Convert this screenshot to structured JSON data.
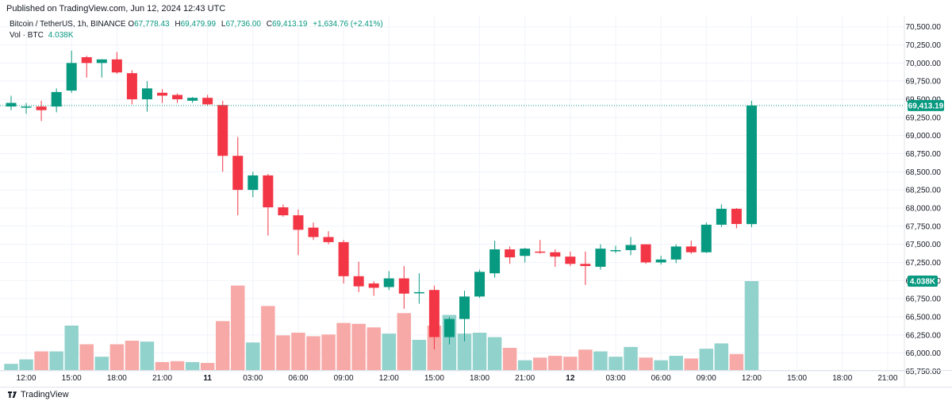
{
  "header": {
    "published": "Published on TradingView.com, Jun 12, 2024 12:43 UTC"
  },
  "legend": {
    "symbol": "Bitcoin / TetherUS, 1h, BINANCE",
    "open_key": "O",
    "open": "67,778.43",
    "high_key": "H",
    "high": "69,479.99",
    "low_key": "L",
    "low": "67,736.00",
    "close_key": "C",
    "close": "69,413.19",
    "change": "+1,634.76 (+2.41%)",
    "vol_label": "Vol · BTC",
    "vol_value": "4.038K"
  },
  "footer": {
    "brand": "TradingView"
  },
  "chart_data": {
    "type": "candlestick",
    "title": "Bitcoin / TetherUS, 1h, BINANCE",
    "colors": {
      "up": "#089981",
      "down": "#f23645",
      "vol_up": "#92d2cc",
      "vol_down": "#f7a9a7"
    },
    "ylim": [
      65700,
      70650
    ],
    "y_ticks": [
      "65,750.00",
      "66,000.00",
      "66,250.00",
      "66,500.00",
      "66,750.00",
      "67,000.00",
      "67,250.00",
      "67,500.00",
      "67,750.00",
      "68,000.00",
      "68,250.00",
      "68,500.00",
      "68,750.00",
      "69,000.00",
      "69,250.00",
      "69,500.00",
      "69,750.00",
      "70,000.00",
      "70,250.00",
      "70,500.00"
    ],
    "x_ticks": [
      {
        "i": 1,
        "label": "12:00"
      },
      {
        "i": 4,
        "label": "15:00"
      },
      {
        "i": 7,
        "label": "18:00"
      },
      {
        "i": 10,
        "label": "21:00"
      },
      {
        "i": 13,
        "label": "11"
      },
      {
        "i": 16,
        "label": "03:00"
      },
      {
        "i": 19,
        "label": "06:00"
      },
      {
        "i": 22,
        "label": "09:00"
      },
      {
        "i": 25,
        "label": "12:00"
      },
      {
        "i": 28,
        "label": "15:00"
      },
      {
        "i": 31,
        "label": "18:00"
      },
      {
        "i": 34,
        "label": "21:00"
      },
      {
        "i": 37,
        "label": "12"
      },
      {
        "i": 40,
        "label": "03:00"
      },
      {
        "i": 43,
        "label": "06:00"
      },
      {
        "i": 46,
        "label": "09:00"
      },
      {
        "i": 49,
        "label": "12:00"
      },
      {
        "i": 52,
        "label": "15:00"
      },
      {
        "i": 55,
        "label": "18:00"
      },
      {
        "i": 58,
        "label": "21:00"
      }
    ],
    "last_price_label": "69,413.19",
    "last_price": 69413.19,
    "volume_label": "4.038K",
    "candles": [
      {
        "o": 69400,
        "h": 69550,
        "l": 69350,
        "c": 69450,
        "v": 0.07
      },
      {
        "o": 69400,
        "h": 69450,
        "l": 69300,
        "c": 69400,
        "v": 0.12
      },
      {
        "o": 69400,
        "h": 69480,
        "l": 69200,
        "c": 69350,
        "v": 0.21
      },
      {
        "o": 69400,
        "h": 69650,
        "l": 69320,
        "c": 69600,
        "v": 0.21
      },
      {
        "o": 69620,
        "h": 70170,
        "l": 69590,
        "c": 70000,
        "v": 0.5
      },
      {
        "o": 70080,
        "h": 70100,
        "l": 69800,
        "c": 70000,
        "v": 0.29
      },
      {
        "o": 70000,
        "h": 70050,
        "l": 69800,
        "c": 70050,
        "v": 0.15
      },
      {
        "o": 70050,
        "h": 70150,
        "l": 69850,
        "c": 69870,
        "v": 0.29
      },
      {
        "o": 69860,
        "h": 69900,
        "l": 69430,
        "c": 69500,
        "v": 0.33
      },
      {
        "o": 69500,
        "h": 69750,
        "l": 69330,
        "c": 69650,
        "v": 0.32
      },
      {
        "o": 69590,
        "h": 69640,
        "l": 69450,
        "c": 69550,
        "v": 0.09
      },
      {
        "o": 69560,
        "h": 69580,
        "l": 69450,
        "c": 69500,
        "v": 0.1
      },
      {
        "o": 69480,
        "h": 69530,
        "l": 69450,
        "c": 69520,
        "v": 0.09
      },
      {
        "o": 69520,
        "h": 69560,
        "l": 69410,
        "c": 69430,
        "v": 0.08
      },
      {
        "o": 69420,
        "h": 69480,
        "l": 68500,
        "c": 68720,
        "v": 0.55
      },
      {
        "o": 68720,
        "h": 68980,
        "l": 67900,
        "c": 68250,
        "v": 0.95
      },
      {
        "o": 68250,
        "h": 68500,
        "l": 68150,
        "c": 68450,
        "v": 0.31
      },
      {
        "o": 68450,
        "h": 68470,
        "l": 67620,
        "c": 68010,
        "v": 0.72
      },
      {
        "o": 68010,
        "h": 68050,
        "l": 67880,
        "c": 67900,
        "v": 0.39
      },
      {
        "o": 67900,
        "h": 67980,
        "l": 67350,
        "c": 67700,
        "v": 0.42
      },
      {
        "o": 67730,
        "h": 67800,
        "l": 67560,
        "c": 67600,
        "v": 0.38
      },
      {
        "o": 67600,
        "h": 67680,
        "l": 67500,
        "c": 67530,
        "v": 0.4
      },
      {
        "o": 67530,
        "h": 67560,
        "l": 66960,
        "c": 67060,
        "v": 0.53
      },
      {
        "o": 67060,
        "h": 67260,
        "l": 66840,
        "c": 66920,
        "v": 0.52
      },
      {
        "o": 66960,
        "h": 66990,
        "l": 66790,
        "c": 66900,
        "v": 0.48
      },
      {
        "o": 66910,
        "h": 67130,
        "l": 66870,
        "c": 67030,
        "v": 0.41
      },
      {
        "o": 67030,
        "h": 67200,
        "l": 66610,
        "c": 66820,
        "v": 0.64
      },
      {
        "o": 66830,
        "h": 67100,
        "l": 66680,
        "c": 66840,
        "v": 0.34
      },
      {
        "o": 66870,
        "h": 66930,
        "l": 66050,
        "c": 66220,
        "v": 0.5
      },
      {
        "o": 66220,
        "h": 66500,
        "l": 66120,
        "c": 66470,
        "v": 0.62
      },
      {
        "o": 66470,
        "h": 66860,
        "l": 66160,
        "c": 66780,
        "v": 0.41
      },
      {
        "o": 66780,
        "h": 67150,
        "l": 66760,
        "c": 67120,
        "v": 0.42
      },
      {
        "o": 67100,
        "h": 67550,
        "l": 67040,
        "c": 67430,
        "v": 0.37
      },
      {
        "o": 67430,
        "h": 67470,
        "l": 67230,
        "c": 67320,
        "v": 0.25
      },
      {
        "o": 67340,
        "h": 67450,
        "l": 67250,
        "c": 67440,
        "v": 0.11
      },
      {
        "o": 67400,
        "h": 67560,
        "l": 67370,
        "c": 67390,
        "v": 0.14
      },
      {
        "o": 67390,
        "h": 67430,
        "l": 67190,
        "c": 67330,
        "v": 0.16
      },
      {
        "o": 67330,
        "h": 67400,
        "l": 67200,
        "c": 67230,
        "v": 0.15
      },
      {
        "o": 67230,
        "h": 67400,
        "l": 66940,
        "c": 67200,
        "v": 0.23
      },
      {
        "o": 67190,
        "h": 67500,
        "l": 67150,
        "c": 67440,
        "v": 0.21
      },
      {
        "o": 67420,
        "h": 67480,
        "l": 67380,
        "c": 67420,
        "v": 0.15
      },
      {
        "o": 67420,
        "h": 67600,
        "l": 67350,
        "c": 67490,
        "v": 0.26
      },
      {
        "o": 67500,
        "h": 67500,
        "l": 67230,
        "c": 67250,
        "v": 0.14
      },
      {
        "o": 67250,
        "h": 67340,
        "l": 67220,
        "c": 67290,
        "v": 0.11
      },
      {
        "o": 67290,
        "h": 67500,
        "l": 67240,
        "c": 67470,
        "v": 0.16
      },
      {
        "o": 67470,
        "h": 67550,
        "l": 67370,
        "c": 67390,
        "v": 0.13
      },
      {
        "o": 67390,
        "h": 67800,
        "l": 67380,
        "c": 67770,
        "v": 0.24
      },
      {
        "o": 67770,
        "h": 68050,
        "l": 67740,
        "c": 67990,
        "v": 0.3
      },
      {
        "o": 67990,
        "h": 68000,
        "l": 67720,
        "c": 67780,
        "v": 0.18
      },
      {
        "o": 67778.43,
        "h": 69479.99,
        "l": 67736.0,
        "c": 69413.19,
        "v": 1.0
      }
    ]
  }
}
